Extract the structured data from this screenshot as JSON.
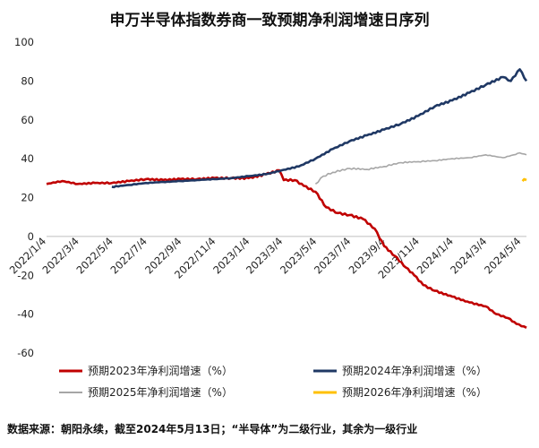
{
  "chart_data": {
    "type": "line",
    "title": "申万半导体指数券商一致预期净利润增速日序列",
    "source": "数据来源：朝阳永续，截至2024年5月13日；“半导体”为二级行业，其余为一级行业",
    "xlabel": "",
    "ylabel": "",
    "ylim": [
      -60,
      100
    ],
    "yticks": [
      -60,
      -40,
      -20,
      0,
      20,
      40,
      60,
      80,
      100
    ],
    "xlim": [
      "2022-01-04",
      "2024-05-13"
    ],
    "xtick_labels": [
      "2022/1/4",
      "2022/3/4",
      "2022/5/4",
      "2022/7/4",
      "2022/9/4",
      "2022/11/4",
      "2023/1/4",
      "2023/3/4",
      "2023/5/4",
      "2023/7/4",
      "2023/9/4",
      "2023/11/4",
      "2024/1/4",
      "2024/3/4",
      "2024/5/4"
    ],
    "xtick_dates": [
      "2022-01-04",
      "2022-03-04",
      "2022-05-04",
      "2022-07-04",
      "2022-09-04",
      "2022-11-04",
      "2023-01-04",
      "2023-03-04",
      "2023-05-04",
      "2023-07-04",
      "2023-09-04",
      "2023-11-04",
      "2024-01-04",
      "2024-03-04",
      "2024-05-04"
    ],
    "grid": false,
    "legend_position": "bottom",
    "series": [
      {
        "name": "预期2023年净利润增速（%）",
        "color": "#c00000",
        "x": [
          "2022-01-04",
          "2022-02-01",
          "2022-03-01",
          "2022-04-01",
          "2022-05-01",
          "2022-06-01",
          "2022-07-01",
          "2022-08-01",
          "2022-09-01",
          "2022-10-01",
          "2022-11-01",
          "2022-12-01",
          "2023-01-01",
          "2023-02-01",
          "2023-02-25",
          "2023-03-05",
          "2023-03-25",
          "2023-04-10",
          "2023-05-01",
          "2023-05-20",
          "2023-06-10",
          "2023-07-01",
          "2023-07-25",
          "2023-08-15",
          "2023-09-01",
          "2023-09-20",
          "2023-10-10",
          "2023-10-25",
          "2023-11-10",
          "2023-12-01",
          "2024-01-01",
          "2024-02-01",
          "2024-03-01",
          "2024-03-20",
          "2024-04-10",
          "2024-04-25",
          "2024-05-13"
        ],
        "values": [
          27,
          28.5,
          27,
          27.5,
          27.5,
          28.5,
          29.5,
          29,
          29.5,
          29.5,
          30,
          30,
          30,
          32,
          34,
          29,
          29,
          26,
          23,
          15,
          12,
          11,
          9,
          4,
          -5,
          -10,
          -16,
          -20,
          -25,
          -28,
          -31,
          -34,
          -36,
          -40,
          -42,
          -45,
          -47
        ]
      },
      {
        "name": "预期2024年净利润增速（%）",
        "color": "#1f3864",
        "x": [
          "2022-05-01",
          "2022-06-01",
          "2022-07-01",
          "2022-08-01",
          "2022-09-01",
          "2022-10-01",
          "2022-11-01",
          "2022-12-01",
          "2023-01-01",
          "2023-02-01",
          "2023-03-01",
          "2023-04-01",
          "2023-05-01",
          "2023-06-01",
          "2023-07-01",
          "2023-08-01",
          "2023-09-01",
          "2023-10-01",
          "2023-11-01",
          "2023-12-01",
          "2024-01-01",
          "2024-02-01",
          "2024-03-01",
          "2024-04-01",
          "2024-04-15",
          "2024-05-01",
          "2024-05-13"
        ],
        "values": [
          25.5,
          26.5,
          27.5,
          28,
          28.5,
          29,
          29.5,
          30,
          31,
          32,
          34,
          36,
          40,
          45,
          49,
          52,
          55,
          58,
          62,
          67,
          70,
          74,
          78,
          82,
          80,
          86,
          80
        ]
      },
      {
        "name": "预期2025年净利润增速（%）",
        "color": "#a6a6a6",
        "x": [
          "2023-05-01",
          "2023-05-15",
          "2023-06-01",
          "2023-07-01",
          "2023-08-01",
          "2023-09-01",
          "2023-10-01",
          "2023-11-01",
          "2023-12-01",
          "2024-01-01",
          "2024-02-01",
          "2024-03-01",
          "2024-04-01",
          "2024-04-20",
          "2024-05-01",
          "2024-05-13"
        ],
        "values": [
          27,
          31,
          33,
          35,
          34.5,
          36,
          38,
          38.5,
          39,
          40,
          40.5,
          42,
          40.5,
          42,
          43,
          42
        ]
      },
      {
        "name": "预期2026年净利润增速（%）",
        "color": "#ffc000",
        "x": [
          "2024-05-06",
          "2024-05-09",
          "2024-05-13"
        ],
        "values": [
          28.5,
          29.5,
          29
        ]
      }
    ]
  }
}
